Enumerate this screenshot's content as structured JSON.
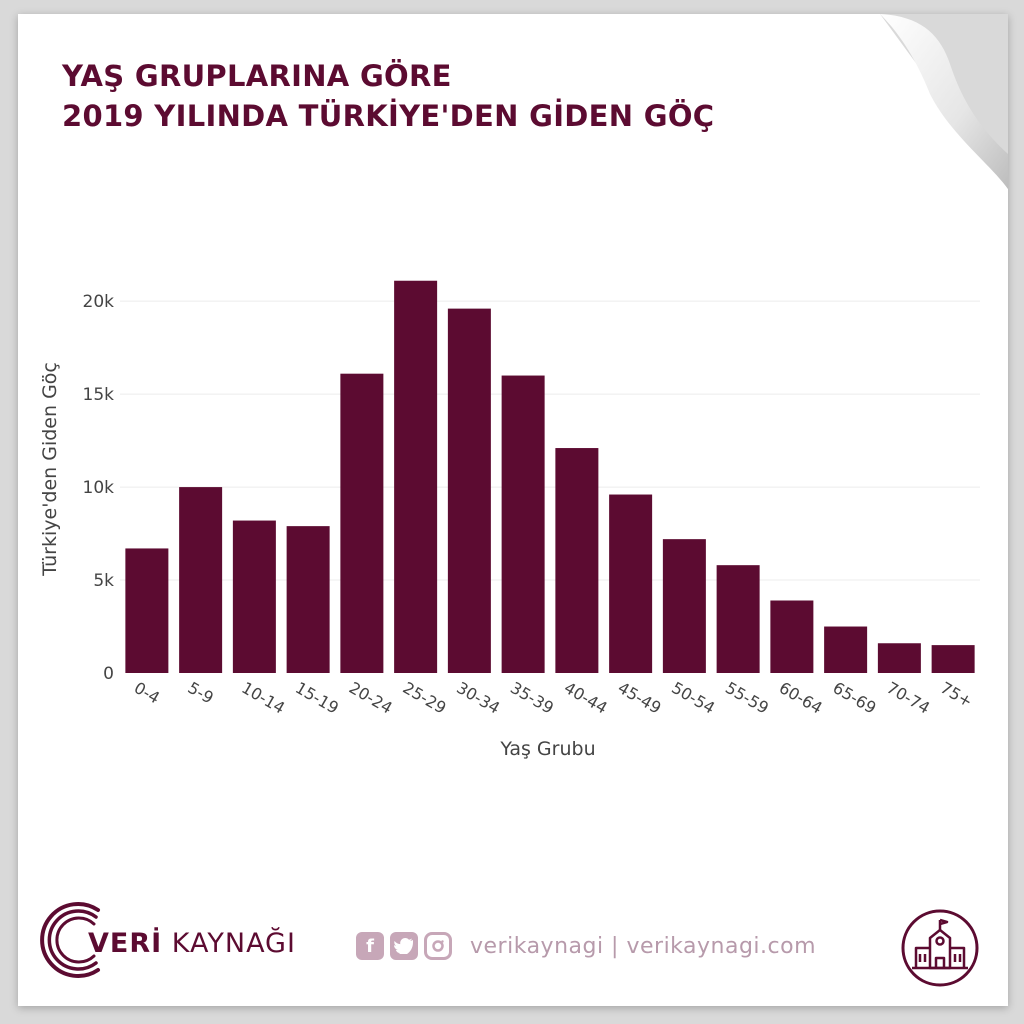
{
  "title": {
    "line1": "YAŞ GRUPLARINA GÖRE",
    "line2": "2019 YILINDA TÜRKİYE'DEN GİDEN GÖÇ"
  },
  "colors": {
    "bar": "#5c0b31",
    "title": "#5c0b31",
    "axis_text": "#444444",
    "grid": "#ececec"
  },
  "chart_data": {
    "type": "bar",
    "categories": [
      "0-4",
      "5-9",
      "10-14",
      "15-19",
      "20-24",
      "25-29",
      "30-34",
      "35-39",
      "40-44",
      "45-49",
      "50-54",
      "55-59",
      "60-64",
      "65-69",
      "70-74",
      "75+"
    ],
    "values": [
      6700,
      10000,
      8200,
      7900,
      16100,
      21100,
      19600,
      16000,
      12100,
      9600,
      7200,
      5800,
      3900,
      2500,
      1600,
      1500
    ],
    "xlabel": "Yaş Grubu",
    "ylabel": "Türkiye'den Giden Göç",
    "ylim": [
      0,
      22000
    ],
    "yticks": [
      0,
      5000,
      10000,
      15000,
      20000
    ],
    "ytick_labels": [
      "0",
      "5k",
      "10k",
      "15k",
      "20k"
    ],
    "grid": true
  },
  "footer": {
    "brand_bold": "VERİ",
    "brand_rest": " KAYNAĞI",
    "social_handles": "verikaynagi | verikaynagi.com",
    "icons": [
      "facebook-icon",
      "twitter-icon",
      "instagram-icon",
      "school-building-icon"
    ]
  }
}
